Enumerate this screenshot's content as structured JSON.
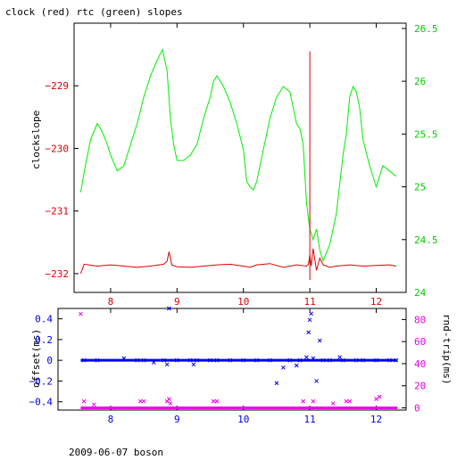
{
  "footer": "2009-06-07 boson",
  "colors": {
    "clock": "#dd0000",
    "rtc": "#00ee00",
    "offset": "#0000ee",
    "rtt": "#ee00ee",
    "axis": "#000000"
  },
  "chart_data": [
    {
      "type": "line",
      "title": "clock (red) rtc (green) slopes",
      "ylabel": "clockslope",
      "xlim": [
        7.45,
        12.45
      ],
      "x_ticks": [
        8,
        9,
        10,
        11,
        12
      ],
      "ylim": [
        -232.3,
        -228.0
      ],
      "y_ticks": [
        -229,
        -230,
        -231,
        -232
      ],
      "y2lim": [
        24.0,
        26.55
      ],
      "y2_ticks": [
        24,
        24.5,
        25,
        25.5,
        26,
        26.5
      ],
      "series": [
        {
          "color": "#dd0000",
          "axis": "left",
          "x": [
            7.55,
            7.6,
            7.8,
            8.0,
            8.2,
            8.4,
            8.6,
            8.8,
            8.85,
            8.88,
            8.92,
            9.0,
            9.2,
            9.4,
            9.6,
            9.8,
            10.0,
            10.1,
            10.2,
            10.4,
            10.6,
            10.8,
            10.95,
            10.98,
            11.0,
            11.02,
            11.05,
            11.1,
            11.15,
            11.2,
            11.3,
            11.4,
            11.6,
            11.8,
            12.0,
            12.2,
            12.3
          ],
          "y": [
            -232.0,
            -231.85,
            -231.88,
            -231.86,
            -231.88,
            -231.9,
            -231.88,
            -231.85,
            -231.8,
            -231.65,
            -231.86,
            -231.89,
            -231.9,
            -231.88,
            -231.86,
            -231.85,
            -231.88,
            -231.9,
            -231.86,
            -231.84,
            -231.9,
            -231.86,
            -231.88,
            -231.85,
            -231.7,
            -231.88,
            -231.6,
            -231.95,
            -231.75,
            -231.86,
            -231.9,
            -231.88,
            -231.86,
            -231.88,
            -231.87,
            -231.86,
            -231.88
          ]
        },
        {
          "color": "#00ee00",
          "axis": "right",
          "x": [
            7.55,
            7.62,
            7.7,
            7.8,
            7.85,
            7.9,
            7.95,
            8.0,
            8.1,
            8.2,
            8.3,
            8.4,
            8.5,
            8.6,
            8.7,
            8.78,
            8.85,
            8.9,
            8.95,
            9.0,
            9.1,
            9.2,
            9.3,
            9.4,
            9.5,
            9.55,
            9.6,
            9.7,
            9.8,
            9.9,
            10.0,
            10.05,
            10.1,
            10.15,
            10.2,
            10.3,
            10.4,
            10.5,
            10.6,
            10.7,
            10.8,
            10.85,
            10.9,
            10.95,
            11.0,
            11.05,
            11.1,
            11.15,
            11.2,
            11.3,
            11.4,
            11.5,
            11.55,
            11.6,
            11.65,
            11.7,
            11.75,
            11.8,
            11.9,
            12.0,
            12.05,
            12.1,
            12.2,
            12.3
          ],
          "y": [
            24.95,
            25.2,
            25.45,
            25.6,
            25.55,
            25.48,
            25.4,
            25.3,
            25.15,
            25.2,
            25.4,
            25.6,
            25.85,
            26.05,
            26.2,
            26.3,
            26.1,
            25.65,
            25.4,
            25.25,
            25.25,
            25.3,
            25.4,
            25.65,
            25.85,
            26.0,
            26.05,
            25.95,
            25.8,
            25.6,
            25.35,
            25.05,
            25.0,
            24.97,
            25.05,
            25.35,
            25.65,
            25.85,
            25.95,
            25.9,
            25.6,
            25.55,
            25.4,
            24.85,
            24.6,
            24.5,
            24.6,
            24.4,
            24.3,
            24.45,
            24.75,
            25.3,
            25.5,
            25.85,
            25.95,
            25.9,
            25.75,
            25.45,
            25.2,
            25.0,
            25.1,
            25.2,
            25.15,
            25.1
          ]
        }
      ],
      "spikes": [
        {
          "color": "#dd0000",
          "x": 11.0,
          "y_from": -228.45,
          "y_to": -232.1
        }
      ]
    },
    {
      "type": "scatter",
      "ylabel": "offset(ms)",
      "y2label": "rnd-trip(ms)",
      "xlim": [
        7.45,
        12.45
      ],
      "x_ticks": [
        8,
        9,
        10,
        11,
        12
      ],
      "ylim": [
        -0.48,
        0.5
      ],
      "y_ticks": [
        0.4,
        0.2,
        0,
        -0.2,
        -0.4
      ],
      "y_tick_labels": [
        "0.4",
        "0.2",
        "0",
        "−0.2",
        "−0.4"
      ],
      "y2lim": [
        -2,
        90
      ],
      "y2_ticks": [
        0,
        20,
        40,
        60,
        80
      ],
      "series": [
        {
          "color": "#0000ee",
          "axis": "left",
          "marker": "x",
          "x": [
            7.6,
            7.8,
            8.2,
            8.4,
            8.5,
            8.65,
            8.8,
            8.85,
            8.88,
            9.0,
            9.2,
            9.25,
            9.3,
            9.5,
            9.6,
            9.8,
            10.0,
            10.2,
            10.4,
            10.5,
            10.6,
            10.7,
            10.8,
            10.85,
            10.95,
            10.98,
            11.0,
            11.02,
            11.05,
            11.1,
            11.15,
            11.2,
            11.3,
            11.45,
            11.5,
            11.7,
            11.8,
            12.0,
            12.2,
            12.3
          ],
          "y": [
            0.0,
            0.0,
            0.02,
            0.0,
            0.0,
            -0.02,
            0.0,
            -0.04,
            0.5,
            0.0,
            0.0,
            -0.04,
            0.0,
            0.0,
            0.0,
            0.0,
            0.0,
            0.0,
            0.0,
            -0.22,
            -0.07,
            0.0,
            -0.05,
            0.0,
            0.03,
            0.27,
            0.39,
            0.45,
            0.02,
            -0.2,
            0.19,
            0.0,
            0.0,
            0.03,
            0.0,
            0.0,
            0.0,
            0.0,
            0.0,
            0.0
          ]
        },
        {
          "color": "#ee00ee",
          "axis": "right",
          "marker": "x",
          "x": [
            7.55,
            7.6,
            7.75,
            8.45,
            8.5,
            8.85,
            8.88,
            8.9,
            9.55,
            9.6,
            10.9,
            11.05,
            11.35,
            11.55,
            11.6,
            12.0,
            12.05
          ],
          "y": [
            85,
            6,
            3,
            6,
            6,
            6,
            8,
            4,
            6,
            6,
            6,
            6,
            4,
            6,
            6,
            8,
            10
          ]
        }
      ]
    }
  ]
}
